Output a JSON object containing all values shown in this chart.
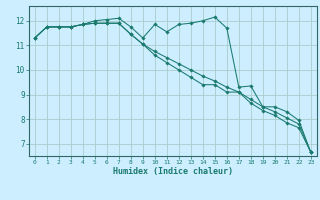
{
  "xlabel": "Humidex (Indice chaleur)",
  "bg_color": "#cceeff",
  "grid_color": "#aacccc",
  "line_color": "#1a7a6e",
  "spine_color": "#336666",
  "xlim": [
    -0.5,
    23.5
  ],
  "ylim": [
    6.5,
    12.6
  ],
  "xticks": [
    0,
    1,
    2,
    3,
    4,
    5,
    6,
    7,
    8,
    9,
    10,
    11,
    12,
    13,
    14,
    15,
    16,
    17,
    18,
    19,
    20,
    21,
    22,
    23
  ],
  "yticks": [
    7,
    8,
    9,
    10,
    11,
    12
  ],
  "line1_x": [
    0,
    1,
    2,
    3,
    4,
    5,
    6,
    7,
    8,
    9,
    10,
    11,
    12,
    13,
    14,
    15,
    16,
    17,
    18,
    19,
    20,
    21,
    22,
    23
  ],
  "line1_y": [
    11.3,
    11.75,
    11.75,
    11.75,
    11.85,
    12.0,
    12.05,
    12.1,
    11.75,
    11.3,
    11.85,
    11.55,
    11.85,
    11.9,
    12.0,
    12.15,
    11.7,
    9.3,
    9.35,
    8.5,
    8.5,
    8.3,
    7.95,
    6.65
  ],
  "line2_x": [
    0,
    1,
    2,
    3,
    4,
    5,
    6,
    7,
    8,
    9,
    10,
    11,
    12,
    13,
    14,
    15,
    16,
    17,
    18,
    19,
    20,
    21,
    22,
    23
  ],
  "line2_y": [
    11.3,
    11.75,
    11.75,
    11.75,
    11.85,
    11.9,
    11.9,
    11.9,
    11.45,
    11.05,
    10.75,
    10.5,
    10.25,
    10.0,
    9.75,
    9.55,
    9.3,
    9.1,
    8.8,
    8.5,
    8.3,
    8.05,
    7.8,
    6.65
  ],
  "line3_x": [
    0,
    1,
    2,
    3,
    4,
    5,
    6,
    7,
    8,
    9,
    10,
    11,
    12,
    13,
    14,
    15,
    16,
    17,
    18,
    19,
    20,
    21,
    22,
    23
  ],
  "line3_y": [
    11.3,
    11.75,
    11.75,
    11.75,
    11.85,
    11.9,
    11.9,
    11.9,
    11.45,
    11.05,
    10.6,
    10.3,
    10.0,
    9.7,
    9.4,
    9.4,
    9.1,
    9.1,
    8.65,
    8.35,
    8.15,
    7.85,
    7.65,
    6.65
  ]
}
